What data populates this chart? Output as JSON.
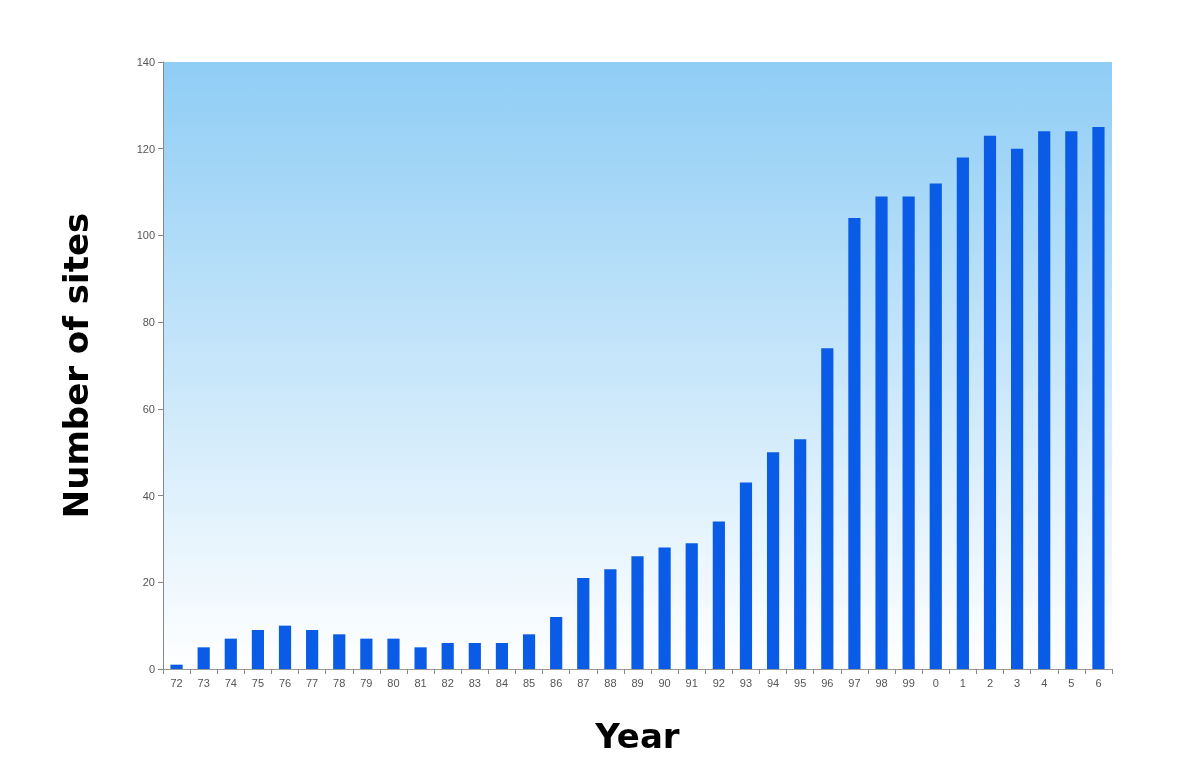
{
  "chart_data": {
    "type": "bar",
    "xlabel": "Year",
    "ylabel": "Number of sites",
    "categories": [
      "72",
      "73",
      "74",
      "75",
      "76",
      "77",
      "78",
      "79",
      "80",
      "81",
      "82",
      "83",
      "84",
      "85",
      "86",
      "87",
      "88",
      "89",
      "90",
      "91",
      "92",
      "93",
      "94",
      "95",
      "96",
      "97",
      "98",
      "99",
      "0",
      "1",
      "2",
      "3",
      "4",
      "5",
      "6"
    ],
    "values": [
      1,
      5,
      7,
      9,
      10,
      9,
      8,
      7,
      7,
      5,
      6,
      6,
      6,
      8,
      12,
      21,
      23,
      26,
      28,
      29,
      34,
      43,
      50,
      53,
      74,
      104,
      109,
      109,
      112,
      118,
      123,
      120,
      124,
      124,
      125
    ],
    "color": "#0a5ce6",
    "ylim": [
      0,
      140
    ],
    "yticks": [
      0,
      20,
      40,
      60,
      80,
      100,
      120,
      140
    ],
    "grid": false
  }
}
